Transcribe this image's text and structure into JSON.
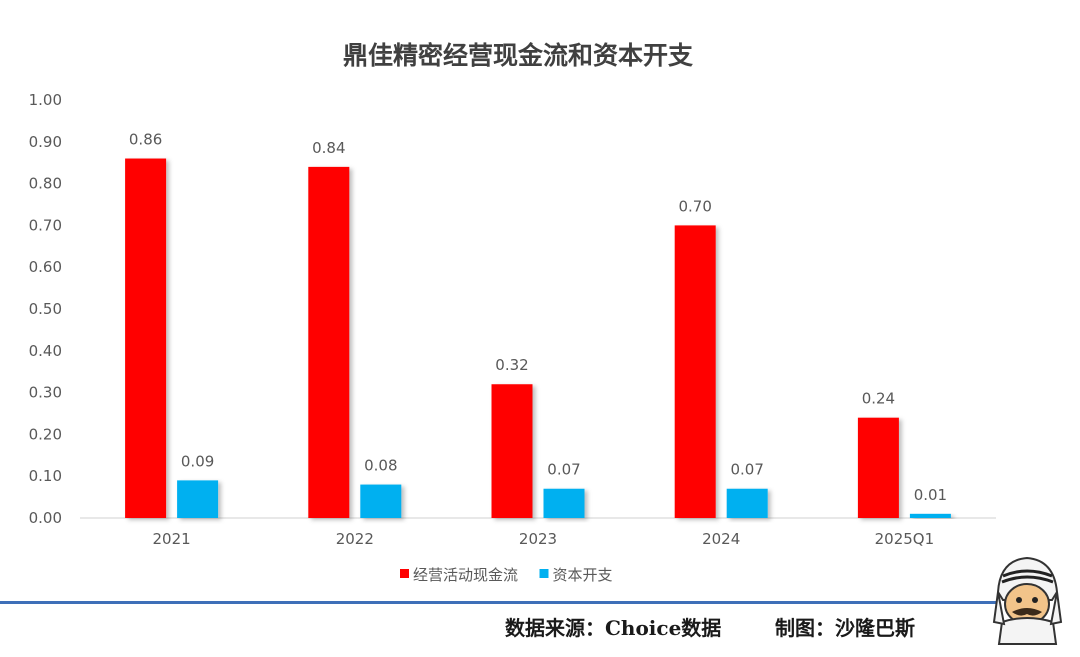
{
  "chart_data": {
    "type": "bar",
    "title": "鼎佳精密经营现金流和资本开支",
    "categories": [
      "2021",
      "2022",
      "2023",
      "2024",
      "2025Q1"
    ],
    "series": [
      {
        "name": "经营活动现金流",
        "color": "#ff0000",
        "values": [
          0.86,
          0.84,
          0.32,
          0.7,
          0.24
        ],
        "labels": [
          "0.86",
          "0.84",
          "0.32",
          "0.70",
          "0.24"
        ]
      },
      {
        "name": "资本开支",
        "color": "#00b0f0",
        "values": [
          0.09,
          0.08,
          0.07,
          0.07,
          0.01
        ],
        "labels": [
          "0.09",
          "0.08",
          "0.07",
          "0.07",
          "0.01"
        ]
      }
    ],
    "ylim": [
      0,
      1.0
    ],
    "yticks": [
      "0.00",
      "0.10",
      "0.20",
      "0.30",
      "0.40",
      "0.50",
      "0.60",
      "0.70",
      "0.80",
      "0.90",
      "1.00"
    ],
    "grid": false,
    "legend_position": "bottom"
  },
  "footer": {
    "source": "数据来源：Choice数据",
    "credit": "制图：沙隆巴斯"
  }
}
